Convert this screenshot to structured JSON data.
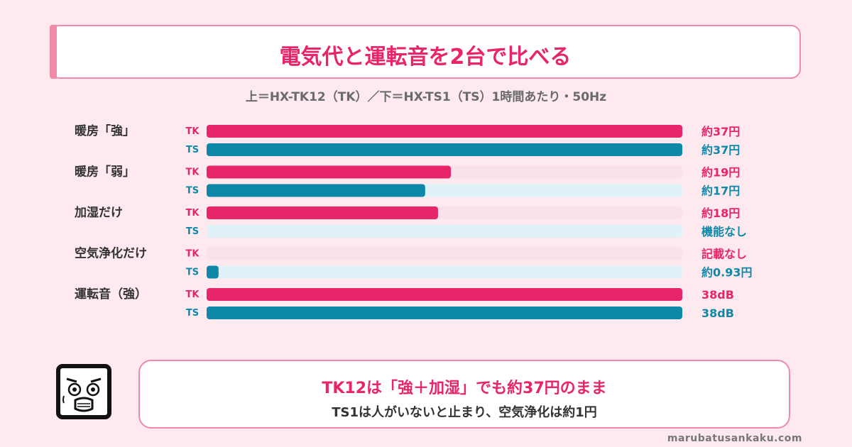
{
  "title": "電気代と運転音を2台で比べる",
  "subtitle": "上＝HX-TK12（TK）／下＝HX-TS1（TS）1時間あたり・50Hz",
  "colors": {
    "tk": "#e8246a",
    "tk_track": "#fbe1ea",
    "ts": "#0e88a8",
    "ts_track": "#dff2f8",
    "accent_border": "#f08aa8"
  },
  "chart_data": {
    "type": "bar",
    "orientation": "horizontal",
    "series_labels": [
      "TK",
      "TS"
    ],
    "scale_max": 37,
    "categories": [
      {
        "label": "暖房「強」",
        "rows": [
          {
            "series": "TK",
            "value": 37,
            "value_label": "約37円"
          },
          {
            "series": "TS",
            "value": 37,
            "value_label": "約37円"
          }
        ]
      },
      {
        "label": "暖房「弱」",
        "rows": [
          {
            "series": "TK",
            "value": 19,
            "value_label": "約19円"
          },
          {
            "series": "TS",
            "value": 17,
            "value_label": "約17円"
          }
        ]
      },
      {
        "label": "加湿だけ",
        "rows": [
          {
            "series": "TK",
            "value": 18,
            "value_label": "約18円"
          },
          {
            "series": "TS",
            "value": 0,
            "value_label": "機能なし"
          }
        ]
      },
      {
        "label": "空気浄化だけ",
        "rows": [
          {
            "series": "TK",
            "value": 0,
            "value_label": "記載なし"
          },
          {
            "series": "TS",
            "value": 0.93,
            "value_label": "約0.93円"
          }
        ]
      },
      {
        "label": "運転音（強）",
        "rows": [
          {
            "series": "TK",
            "value": 38,
            "value_label": "38dB",
            "relative": 1.0
          },
          {
            "series": "TS",
            "value": 38,
            "value_label": "38dB",
            "relative": 1.0
          }
        ]
      }
    ]
  },
  "summary": {
    "line1": "TK12は「強＋加湿」でも約37円のまま",
    "line2": "TS1は人がいないと止まり、空気浄化は約1円"
  },
  "mascot_icon": "shocked-face-icon",
  "footer": "marubatusankaku.com"
}
